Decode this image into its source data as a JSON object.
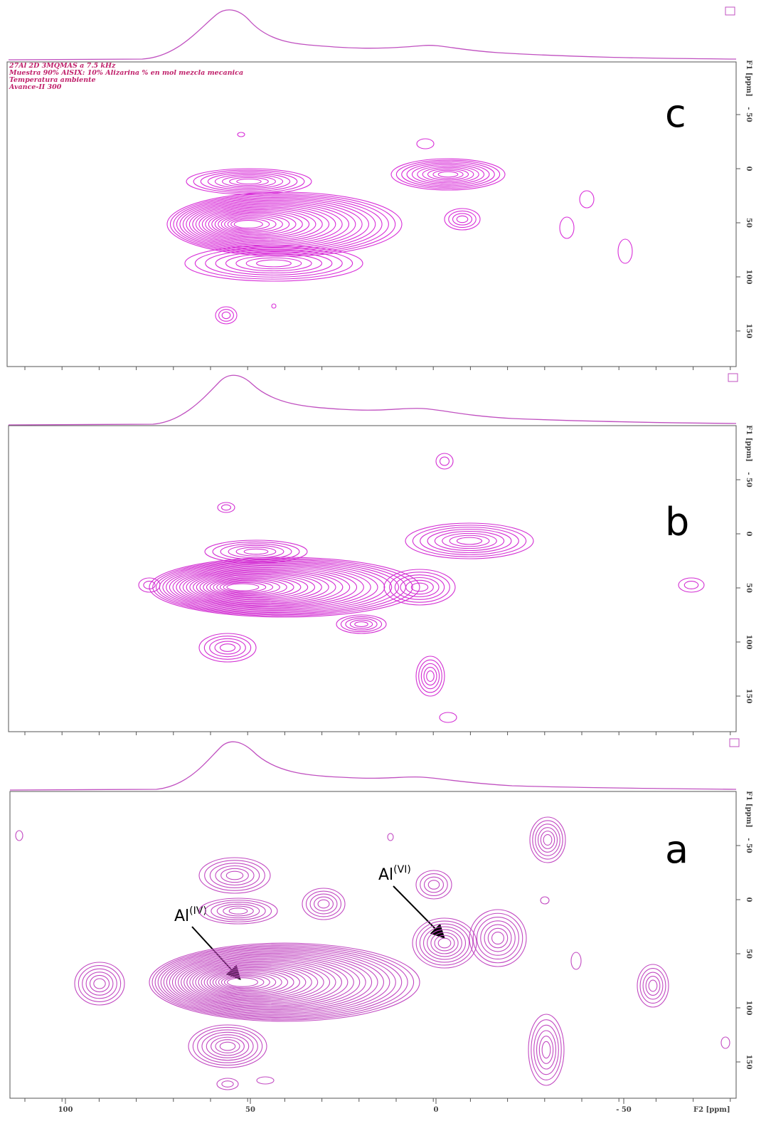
{
  "panels": [
    {
      "label": "c",
      "header": [
        "27Al 2D 3MQMAS a 7.5 kHz",
        "Muestra 90% AlSIX: 10% Alizarina % en mol mezcla mecanica",
        "Temperatura ambiente",
        "Avance-II 300"
      ],
      "f1_axis_label": "F1 [ppm]",
      "f1_ticks": [
        "- 50",
        "0",
        "50",
        "100",
        "150"
      ]
    },
    {
      "label": "b",
      "f1_axis_label": "F1 [ppm]",
      "f1_ticks": [
        "- 50",
        "0",
        "50",
        "100",
        "150"
      ]
    },
    {
      "label": "a",
      "f1_axis_label": "F1 [ppm]",
      "f1_ticks": [
        "- 50",
        "0",
        "50",
        "100",
        "150"
      ],
      "annotations": [
        {
          "text": "Al",
          "sup": "(IV)"
        },
        {
          "text": "Al",
          "sup": "(VI)"
        }
      ]
    }
  ],
  "f2_axis": {
    "label": "F2 [ppm]",
    "ticks": [
      "100",
      "50",
      "0",
      "- 50"
    ]
  }
}
